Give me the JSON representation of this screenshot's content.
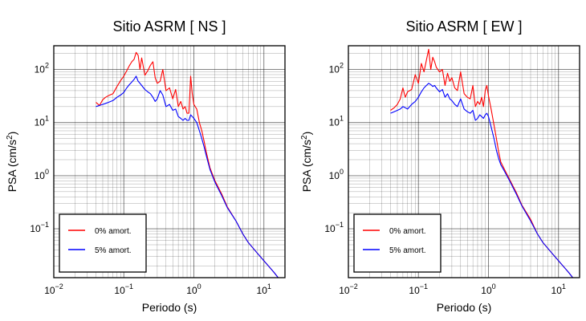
{
  "chart_data": [
    {
      "type": "line",
      "title": "Sitio ASRM [ NS ]",
      "xlabel": "Periodo (s)",
      "ylabel": "PSA (cm/s2)",
      "xscale": "log",
      "yscale": "log",
      "xlim": [
        0.01,
        20
      ],
      "ylim": [
        0.012,
        280
      ],
      "grid": true,
      "legend_position": "bottom-left",
      "x_ticks": [
        {
          "value": 0.01,
          "base": "10",
          "exp": "−2"
        },
        {
          "value": 0.1,
          "base": "10",
          "exp": "−1"
        },
        {
          "value": 1,
          "base": "10",
          "exp": "0"
        },
        {
          "value": 10,
          "base": "10",
          "exp": "1"
        }
      ],
      "y_ticks": [
        {
          "value": 0.1,
          "base": "10",
          "exp": "−1"
        },
        {
          "value": 1,
          "base": "10",
          "exp": "0"
        },
        {
          "value": 10,
          "base": "10",
          "exp": "1"
        },
        {
          "value": 100,
          "base": "10",
          "exp": "2"
        }
      ],
      "series": [
        {
          "name": "0% amort.",
          "color": "#ff0000",
          "x": [
            0.04,
            0.045,
            0.05,
            0.055,
            0.06,
            0.07,
            0.08,
            0.09,
            0.1,
            0.11,
            0.12,
            0.13,
            0.14,
            0.15,
            0.16,
            0.17,
            0.18,
            0.2,
            0.22,
            0.24,
            0.26,
            0.28,
            0.3,
            0.33,
            0.36,
            0.4,
            0.45,
            0.5,
            0.55,
            0.6,
            0.65,
            0.7,
            0.75,
            0.8,
            0.85,
            0.9,
            0.95,
            1.0,
            1.1,
            1.2,
            1.3,
            1.4,
            1.5,
            1.7,
            2.0,
            2.5,
            3.0,
            4.0,
            5.0,
            6.0,
            8.0,
            10.0,
            12.0,
            14.0,
            16.0
          ],
          "y": [
            24,
            21,
            27,
            30,
            32,
            35,
            48,
            62,
            75,
            95,
            118,
            140,
            155,
            210,
            185,
            100,
            165,
            78,
            95,
            120,
            140,
            70,
            55,
            60,
            100,
            40,
            45,
            28,
            42,
            20,
            25,
            18,
            20,
            15,
            15,
            75,
            35,
            22,
            18,
            10,
            7,
            4.5,
            2.8,
            1.4,
            0.8,
            0.45,
            0.26,
            0.14,
            0.08,
            0.055,
            0.035,
            0.025,
            0.019,
            0.015,
            0.012
          ]
        },
        {
          "name": "5% amort.",
          "color": "#0000ff",
          "x": [
            0.04,
            0.045,
            0.05,
            0.055,
            0.06,
            0.07,
            0.08,
            0.09,
            0.1,
            0.11,
            0.12,
            0.13,
            0.14,
            0.15,
            0.16,
            0.17,
            0.18,
            0.2,
            0.22,
            0.24,
            0.26,
            0.28,
            0.3,
            0.33,
            0.36,
            0.4,
            0.45,
            0.5,
            0.55,
            0.6,
            0.65,
            0.7,
            0.75,
            0.8,
            0.85,
            0.9,
            0.95,
            1.0,
            1.1,
            1.2,
            1.3,
            1.4,
            1.5,
            1.7,
            2.0,
            2.5,
            3.0,
            4.0,
            5.0,
            6.0,
            8.0,
            10.0,
            12.0,
            14.0,
            16.0
          ],
          "y": [
            20,
            21,
            22,
            23,
            24,
            26,
            30,
            33,
            37,
            45,
            52,
            58,
            65,
            75,
            60,
            55,
            50,
            42,
            38,
            35,
            30,
            25,
            28,
            40,
            33,
            20,
            22,
            17,
            18,
            13,
            12,
            11,
            12,
            11,
            11,
            14,
            13,
            12,
            10,
            7,
            5,
            3.5,
            2.4,
            1.3,
            0.75,
            0.42,
            0.25,
            0.14,
            0.08,
            0.055,
            0.035,
            0.025,
            0.019,
            0.015,
            0.012
          ]
        }
      ]
    },
    {
      "type": "line",
      "title": "Sitio ASRM [ EW ]",
      "xlabel": "Periodo (s)",
      "ylabel": "PSA (cm/s2)",
      "xscale": "log",
      "yscale": "log",
      "xlim": [
        0.01,
        20
      ],
      "ylim": [
        0.012,
        280
      ],
      "grid": true,
      "legend_position": "bottom-left",
      "x_ticks": [
        {
          "value": 0.01,
          "base": "10",
          "exp": "−2"
        },
        {
          "value": 0.1,
          "base": "10",
          "exp": "−1"
        },
        {
          "value": 1,
          "base": "10",
          "exp": "0"
        },
        {
          "value": 10,
          "base": "10",
          "exp": "1"
        }
      ],
      "y_ticks": [
        {
          "value": 0.1,
          "base": "10",
          "exp": "−1"
        },
        {
          "value": 1,
          "base": "10",
          "exp": "0"
        },
        {
          "value": 10,
          "base": "10",
          "exp": "1"
        },
        {
          "value": 100,
          "base": "10",
          "exp": "2"
        }
      ],
      "series": [
        {
          "name": "0% amort.",
          "color": "#ff0000",
          "x": [
            0.04,
            0.045,
            0.05,
            0.055,
            0.06,
            0.065,
            0.07,
            0.08,
            0.09,
            0.1,
            0.11,
            0.12,
            0.13,
            0.14,
            0.15,
            0.16,
            0.17,
            0.18,
            0.2,
            0.22,
            0.24,
            0.26,
            0.28,
            0.3,
            0.33,
            0.36,
            0.4,
            0.45,
            0.5,
            0.55,
            0.6,
            0.65,
            0.7,
            0.75,
            0.8,
            0.85,
            0.9,
            0.95,
            1.0,
            1.1,
            1.2,
            1.3,
            1.4,
            1.5,
            1.7,
            2.0,
            2.5,
            3.0,
            4.0,
            5.0,
            6.0,
            8.0,
            10.0,
            12.0,
            14.0,
            16.0
          ],
          "y": [
            17,
            19,
            22,
            28,
            45,
            30,
            38,
            42,
            80,
            55,
            130,
            90,
            150,
            240,
            100,
            170,
            140,
            110,
            90,
            100,
            50,
            85,
            60,
            70,
            45,
            40,
            90,
            35,
            30,
            28,
            50,
            20,
            25,
            22,
            30,
            20,
            40,
            50,
            32,
            17,
            9,
            5,
            2.8,
            1.8,
            1.3,
            0.85,
            0.48,
            0.28,
            0.15,
            0.08,
            0.055,
            0.035,
            0.025,
            0.019,
            0.015,
            0.012
          ]
        },
        {
          "name": "5% amort.",
          "color": "#0000ff",
          "x": [
            0.04,
            0.045,
            0.05,
            0.055,
            0.06,
            0.065,
            0.07,
            0.08,
            0.09,
            0.1,
            0.11,
            0.12,
            0.13,
            0.14,
            0.15,
            0.16,
            0.17,
            0.18,
            0.2,
            0.22,
            0.24,
            0.26,
            0.28,
            0.3,
            0.33,
            0.36,
            0.4,
            0.45,
            0.5,
            0.55,
            0.6,
            0.65,
            0.7,
            0.75,
            0.8,
            0.85,
            0.9,
            0.95,
            1.0,
            1.1,
            1.2,
            1.3,
            1.4,
            1.5,
            1.7,
            2.0,
            2.5,
            3.0,
            4.0,
            5.0,
            6.0,
            8.0,
            10.0,
            12.0,
            14.0,
            16.0
          ],
          "y": [
            15,
            16,
            17,
            18,
            20,
            19,
            18,
            22,
            25,
            30,
            38,
            45,
            50,
            55,
            52,
            48,
            50,
            45,
            38,
            42,
            30,
            35,
            28,
            26,
            22,
            20,
            28,
            18,
            16,
            15,
            17,
            11,
            12,
            14,
            13,
            12,
            14,
            15,
            13,
            8,
            5,
            3,
            2.1,
            1.6,
            1.2,
            0.8,
            0.45,
            0.27,
            0.14,
            0.08,
            0.055,
            0.035,
            0.025,
            0.019,
            0.015,
            0.012
          ]
        }
      ]
    }
  ]
}
